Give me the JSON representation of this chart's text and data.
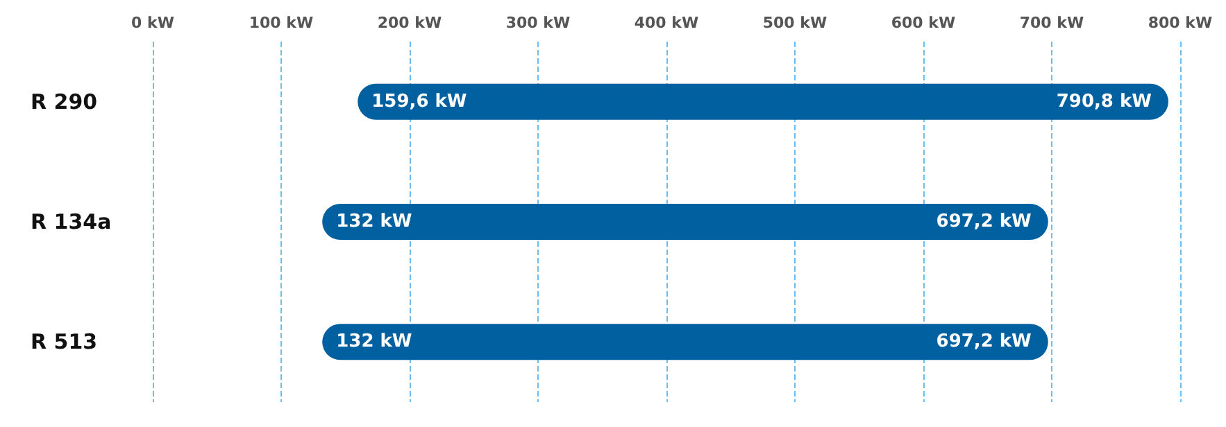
{
  "chart_data": {
    "type": "bar",
    "orientation": "horizontal",
    "categories": [
      "R 290",
      "R 134a",
      "R 513"
    ],
    "base": [
      159.6,
      132,
      132
    ],
    "values": [
      631.2,
      565.2,
      565.2
    ],
    "color": "#0060a0",
    "xlim": [
      0,
      800
    ],
    "xticks": [
      {
        "value": 0,
        "label": "0 kW"
      },
      {
        "value": 100,
        "label": "100 kW"
      },
      {
        "value": 200,
        "label": "200 kW"
      },
      {
        "value": 300,
        "label": "300 kW"
      },
      {
        "value": 400,
        "label": "400 kW"
      },
      {
        "value": 500,
        "label": "500 kW"
      },
      {
        "value": 600,
        "label": "600 kW"
      },
      {
        "value": 700,
        "label": "700 kW"
      },
      {
        "value": 800,
        "label": "800 kW"
      }
    ],
    "grid": "x",
    "annotations": [
      {
        "text": "159,6 kW",
        "x": 159.6,
        "y": "R 290"
      },
      {
        "text": "790,8 kW",
        "x": 790.8,
        "y": "R 290"
      },
      {
        "text": "132 kW",
        "x": 132,
        "y": "R 134a"
      },
      {
        "text": "697,2 kW",
        "x": 697.2,
        "y": "R 134a"
      },
      {
        "text": "132 kW",
        "x": 132,
        "y": "R 513"
      },
      {
        "text": "697,2 kW",
        "x": 697.2,
        "y": "R 513"
      }
    ]
  }
}
